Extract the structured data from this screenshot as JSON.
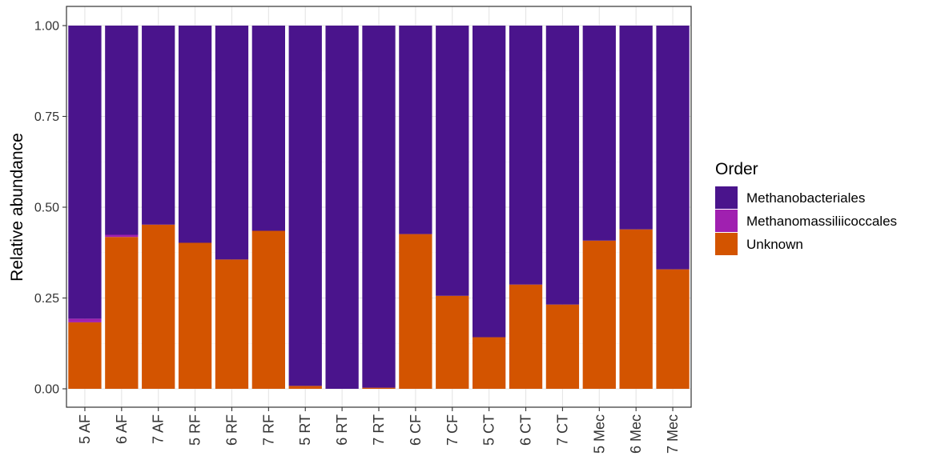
{
  "chart_data": {
    "type": "bar",
    "stacked": true,
    "categories": [
      "5 AF",
      "6 AF",
      "7 AF",
      "5 RF",
      "6 RF",
      "7 RF",
      "5 RT",
      "6 RT",
      "7 RT",
      "6 CF",
      "7 CF",
      "5 CT",
      "6 CT",
      "7 CT",
      "5 Mec",
      "6 Mec",
      "7 Mec"
    ],
    "series": [
      {
        "name": "Unknown",
        "color": "#D35400",
        "values": [
          0.183,
          0.418,
          0.452,
          0.402,
          0.356,
          0.435,
          0.008,
          0.0,
          0.003,
          0.426,
          0.256,
          0.142,
          0.287,
          0.232,
          0.408,
          0.439,
          0.329
        ]
      },
      {
        "name": "Methanomassiliicoccales",
        "color": "#A020B0",
        "values": [
          0.01,
          0.006,
          0.0,
          0.0,
          0.0,
          0.0,
          0.0,
          0.0,
          0.0,
          0.0,
          0.0,
          0.0,
          0.0,
          0.0,
          0.0,
          0.0,
          0.0
        ]
      },
      {
        "name": "Methanobacteriales",
        "color": "#4A148C",
        "values": [
          0.807,
          0.576,
          0.548,
          0.598,
          0.644,
          0.565,
          0.992,
          1.0,
          0.997,
          0.574,
          0.744,
          0.858,
          0.713,
          0.768,
          0.592,
          0.561,
          0.671
        ]
      }
    ],
    "title": "",
    "xlabel": "",
    "ylabel": "Relative abundance",
    "ylim": [
      0,
      1
    ],
    "yticks": [
      "0.00",
      "0.25",
      "0.50",
      "0.75",
      "1.00"
    ],
    "ytick_values": [
      0,
      0.25,
      0.5,
      0.75,
      1.0
    ],
    "grid": true,
    "legend": {
      "title": "Order",
      "placement": "right",
      "entries": [
        "Methanobacteriales",
        "Methanomassiliicoccales",
        "Unknown"
      ]
    }
  }
}
